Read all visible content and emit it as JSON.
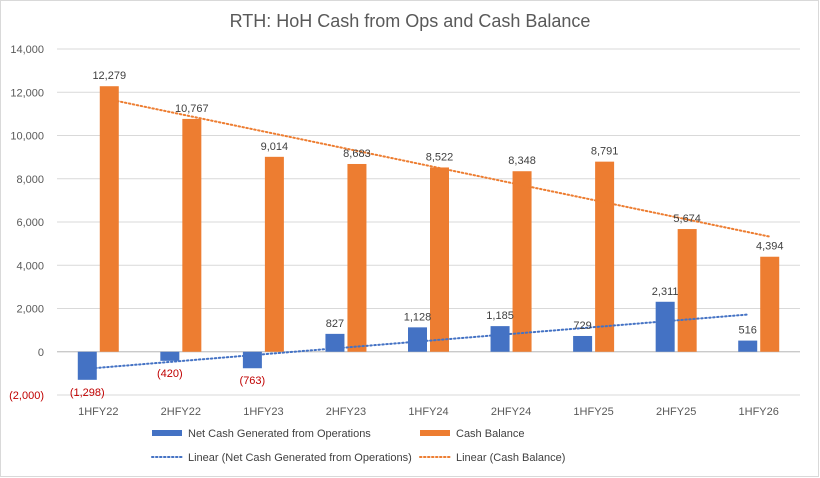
{
  "chart_data": {
    "type": "bar",
    "title": "RTH: HoH Cash from Ops and Cash Balance",
    "xlabel": "",
    "ylabel": "",
    "categories": [
      "1HFY22",
      "2HFY22",
      "1HFY23",
      "2HFY23",
      "1HFY24",
      "2HFY24",
      "1HFY25",
      "2HFY25",
      "1HFY26"
    ],
    "series": [
      {
        "name": "Net Cash Generated from Operations",
        "color": "#4472c4",
        "values": [
          -1298,
          -420,
          -763,
          827,
          1128,
          1185,
          729,
          2311,
          516
        ],
        "labels": [
          "(1,298)",
          "(420)",
          "(763)",
          "827",
          "1,128",
          "1,185",
          "729",
          "2,311",
          "516"
        ]
      },
      {
        "name": "Cash Balance",
        "color": "#ed7d31",
        "values": [
          12279,
          10767,
          9014,
          8683,
          8522,
          8348,
          8791,
          5674,
          4394
        ],
        "labels": [
          "12,279",
          "10,767",
          "9,014",
          "8,683",
          "8,522",
          "8,348",
          "8,791",
          "5,674",
          "4,394"
        ]
      }
    ],
    "trendlines": [
      {
        "name": "Linear (Net Cash Generated from Operations)",
        "series": 0,
        "type": "linear",
        "color": "#4472c4"
      },
      {
        "name": "Linear (Cash Balance)",
        "series": 1,
        "type": "linear",
        "color": "#ed7d31"
      }
    ],
    "ylim": [
      -2000,
      14000
    ],
    "yticks": [
      -2000,
      0,
      2000,
      4000,
      6000,
      8000,
      10000,
      12000,
      14000
    ],
    "ytick_labels": [
      "(2,000)",
      "0",
      "2,000",
      "4,000",
      "6,000",
      "8,000",
      "10,000",
      "12,000",
      "14,000"
    ],
    "grid": true,
    "legend": "bottom"
  }
}
